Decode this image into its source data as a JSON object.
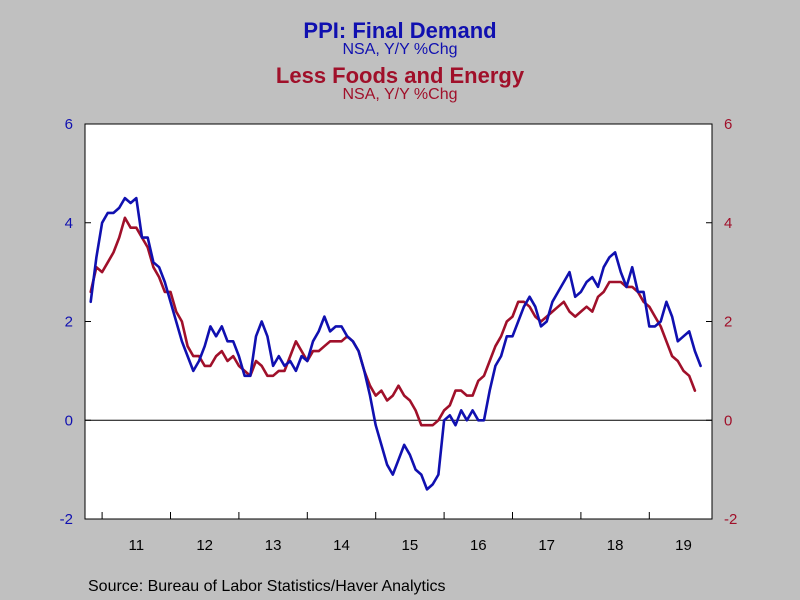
{
  "title": "PPI: Final Demand",
  "title_sub": "NSA, Y/Y %Chg",
  "title2": "Less Foods and Energy",
  "title2_sub": "NSA, Y/Y %Chg",
  "source": "Source:  Bureau of Labor Statistics/Haver Analytics",
  "colors": {
    "series1": "#1010b0",
    "series2": "#a0102a",
    "background": "#c0c0c0",
    "plot": "#ffffff"
  },
  "chart_data": {
    "type": "line",
    "x_start": "2010-10",
    "x_end": "2019-12",
    "xtick_labels": [
      "11",
      "12",
      "13",
      "14",
      "15",
      "16",
      "17",
      "18",
      "19"
    ],
    "ylim": [
      -2,
      6
    ],
    "yticks": [
      "-2",
      "0",
      "2",
      "4",
      "6"
    ],
    "y2lim": [
      -2,
      6
    ],
    "y2ticks": [
      "-2",
      "0",
      "2",
      "4",
      "6"
    ],
    "zero_line": true,
    "grid": false,
    "series": [
      {
        "name": "PPI: Final Demand",
        "axis": "left",
        "x_start": "2010-11",
        "values": [
          2.4,
          3.3,
          4.0,
          4.2,
          4.2,
          4.3,
          4.5,
          4.4,
          4.5,
          3.7,
          3.7,
          3.2,
          3.1,
          2.8,
          2.4,
          2.0,
          1.6,
          1.3,
          1.0,
          1.2,
          1.5,
          1.9,
          1.7,
          1.9,
          1.6,
          1.6,
          1.3,
          0.9,
          0.9,
          1.7,
          2.0,
          1.7,
          1.1,
          1.3,
          1.1,
          1.2,
          1.0,
          1.3,
          1.2,
          1.6,
          1.8,
          2.1,
          1.8,
          1.9,
          1.9,
          1.7,
          1.6,
          1.4,
          1.0,
          0.5,
          -0.1,
          -0.5,
          -0.9,
          -1.1,
          -0.8,
          -0.5,
          -0.7,
          -1.0,
          -1.1,
          -1.4,
          -1.3,
          -1.1,
          0.0,
          0.1,
          -0.1,
          0.2,
          0.0,
          0.2,
          0.0,
          0.0,
          0.6,
          1.1,
          1.3,
          1.7,
          1.7,
          2.0,
          2.3,
          2.5,
          2.3,
          1.9,
          2.0,
          2.4,
          2.6,
          2.8,
          3.0,
          2.5,
          2.6,
          2.8,
          2.9,
          2.7,
          3.1,
          3.3,
          3.4,
          3.0,
          2.7,
          3.1,
          2.6,
          2.6,
          1.9,
          1.9,
          2.0,
          2.4,
          2.1,
          1.6,
          1.7,
          1.8,
          1.4,
          1.1
        ]
      },
      {
        "name": "Less Foods and Energy",
        "axis": "right",
        "x_start": "2010-11",
        "values": [
          2.6,
          3.1,
          3.0,
          3.2,
          3.4,
          3.7,
          4.1,
          3.9,
          3.9,
          3.7,
          3.5,
          3.1,
          2.9,
          2.6,
          2.6,
          2.2,
          2.0,
          1.5,
          1.3,
          1.3,
          1.1,
          1.1,
          1.3,
          1.4,
          1.2,
          1.3,
          1.1,
          1.0,
          0.9,
          1.2,
          1.1,
          0.9,
          0.9,
          1.0,
          1.0,
          1.3,
          1.6,
          1.4,
          1.2,
          1.4,
          1.4,
          1.5,
          1.6,
          1.6,
          1.6,
          1.7,
          1.6,
          1.4,
          1.0,
          0.7,
          0.5,
          0.6,
          0.4,
          0.5,
          0.7,
          0.5,
          0.4,
          0.2,
          -0.1,
          -0.1,
          -0.1,
          0.0,
          0.2,
          0.3,
          0.6,
          0.6,
          0.5,
          0.5,
          0.8,
          0.9,
          1.2,
          1.5,
          1.7,
          2.0,
          2.1,
          2.4,
          2.4,
          2.3,
          2.1,
          2.0,
          2.1,
          2.2,
          2.3,
          2.4,
          2.2,
          2.1,
          2.2,
          2.3,
          2.2,
          2.5,
          2.6,
          2.8,
          2.8,
          2.8,
          2.7,
          2.7,
          2.6,
          2.4,
          2.3,
          2.1,
          1.9,
          1.6,
          1.3,
          1.2,
          1.0,
          0.9,
          0.6
        ]
      }
    ]
  }
}
